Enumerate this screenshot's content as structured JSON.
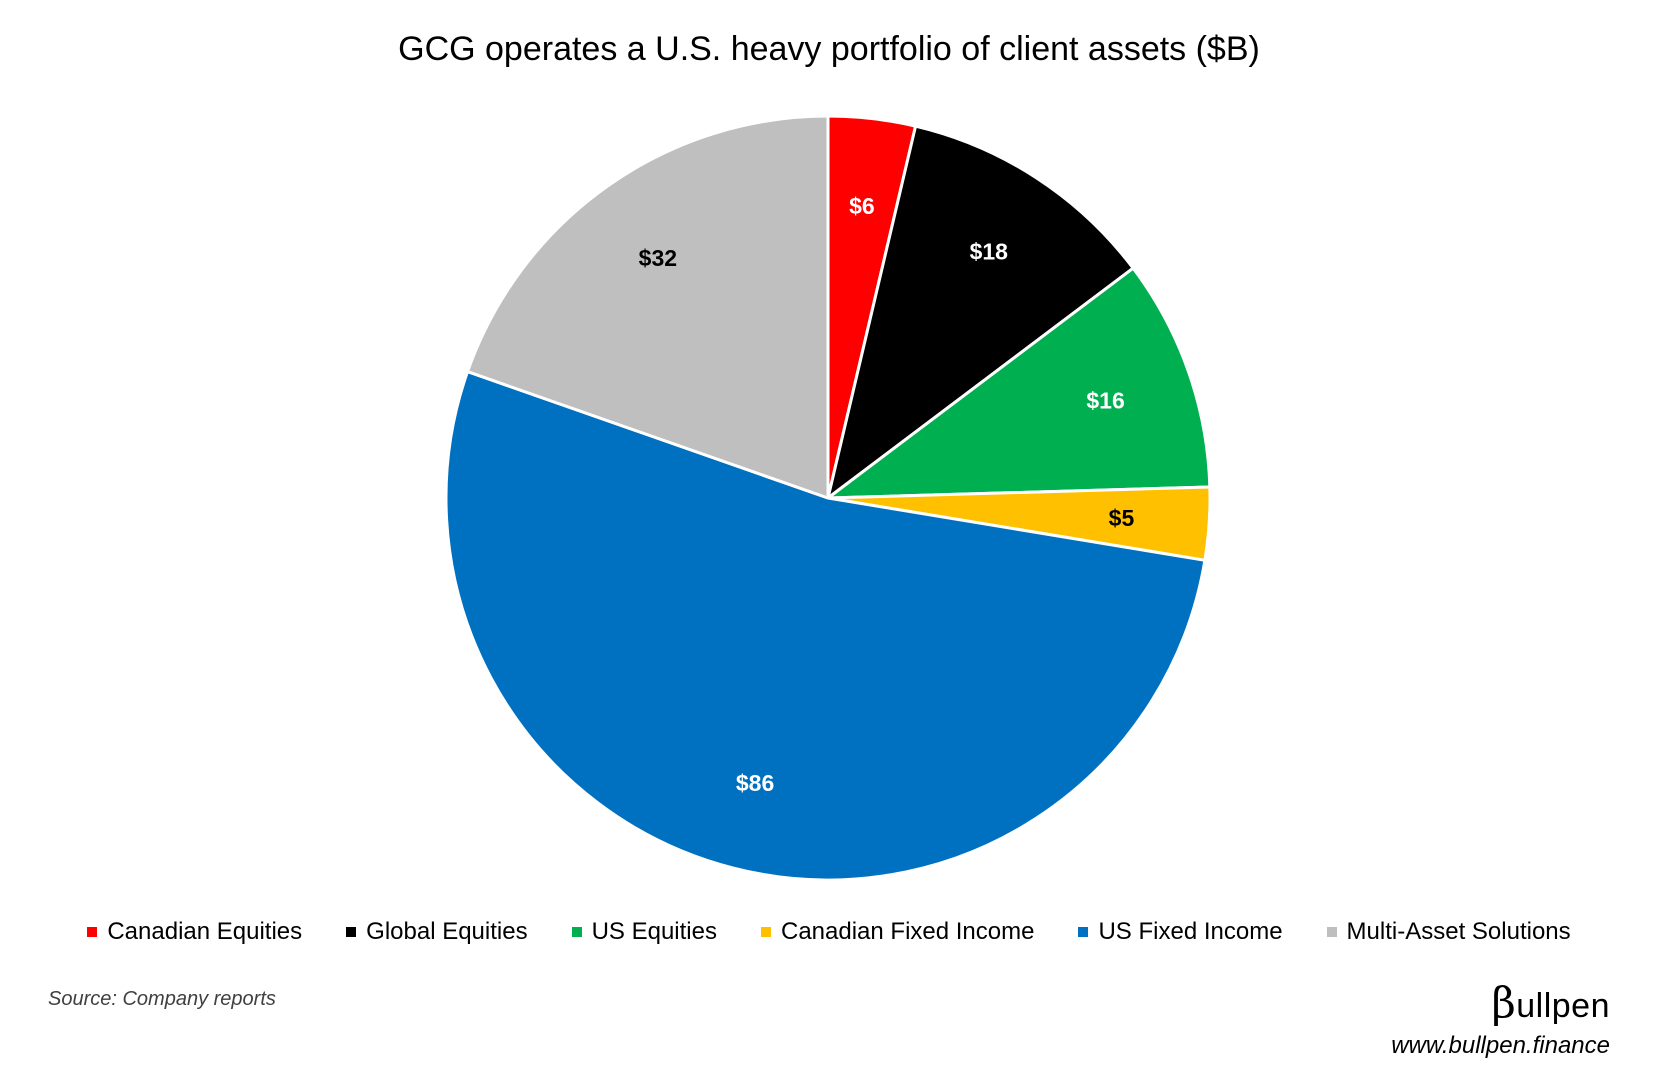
{
  "chart_data": {
    "type": "pie",
    "title": "GCG operates a U.S. heavy portfolio of client assets ($B)",
    "categories": [
      "Canadian Equities",
      "Global Equities",
      "US Equities",
      "Canadian Fixed Income",
      "US Fixed Income",
      "Multi-Asset Solutions"
    ],
    "values": [
      6,
      18,
      16,
      5,
      86,
      32
    ],
    "data_labels": [
      "$6",
      "$18",
      "$16",
      "$5",
      "$86",
      "$32"
    ],
    "colors": [
      "#FF0000",
      "#000000",
      "#00B050",
      "#FFC000",
      "#0070C0",
      "#BFBFBF"
    ],
    "label_colors": [
      "#FFFFFF",
      "#FFFFFF",
      "#FFFFFF",
      "#000000",
      "#FFFFFF",
      "#000000"
    ],
    "start_angle": "12 o'clock",
    "direction": "clockwise",
    "legend_position": "bottom"
  },
  "footer": {
    "source": "Source: Company reports",
    "brand_beta": "β",
    "brand_rest": "ullpen",
    "url": "www.bullpen.finance"
  }
}
